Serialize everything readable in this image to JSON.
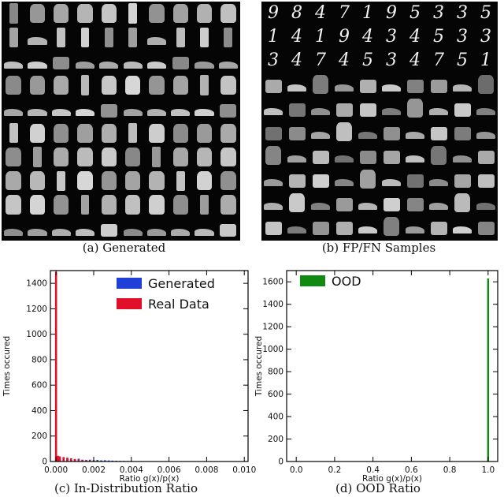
{
  "panels": {
    "a": {
      "caption": "(a) Generated"
    },
    "b": {
      "caption": "(b) FP/FN Samples",
      "digit_rows": [
        "98471953 35",
        "1419434533",
        "3474534751"
      ]
    },
    "c": {
      "caption": "(c) In-Distribution Ratio"
    },
    "d": {
      "caption": "(d) OOD Ratio"
    }
  },
  "chart_data": [
    {
      "type": "histogram",
      "xlabel": "Ratio g(x)/p(x)",
      "ylabel": "Times occured",
      "xlim": [
        -0.0003,
        0.0102
      ],
      "ylim": [
        0,
        1500
      ],
      "xticks": [
        "0.000",
        "0.002",
        "0.004",
        "0.006",
        "0.008",
        "0.010"
      ],
      "yticks": [
        "0",
        "200",
        "400",
        "600",
        "800",
        "1000",
        "1200",
        "1400"
      ],
      "legend_position": "top-right",
      "series": [
        {
          "name": "Generated",
          "color": "#1f3fd6",
          "bins": [
            [
              0.0,
              30
            ],
            [
              0.0002,
              28
            ],
            [
              0.0004,
              24
            ],
            [
              0.0006,
              26
            ],
            [
              0.0008,
              22
            ],
            [
              0.001,
              18
            ],
            [
              0.0012,
              22
            ],
            [
              0.0014,
              14
            ],
            [
              0.0016,
              12
            ],
            [
              0.0018,
              14
            ],
            [
              0.002,
              10
            ],
            [
              0.0022,
              12
            ],
            [
              0.0024,
              9
            ],
            [
              0.0026,
              10
            ],
            [
              0.0028,
              8
            ],
            [
              0.003,
              7
            ],
            [
              0.0032,
              6
            ],
            [
              0.0034,
              5
            ],
            [
              0.0036,
              5
            ],
            [
              0.0038,
              4
            ],
            [
              0.004,
              4
            ],
            [
              0.0042,
              3
            ],
            [
              0.0044,
              3
            ],
            [
              0.0046,
              2
            ],
            [
              0.0048,
              2
            ]
          ]
        },
        {
          "name": "Real Data",
          "color": "#e0102a",
          "bins": [
            [
              0.0,
              1490
            ],
            [
              0.0001,
              45
            ],
            [
              0.0002,
              40
            ],
            [
              0.0004,
              35
            ],
            [
              0.0006,
              30
            ],
            [
              0.0008,
              25
            ],
            [
              0.001,
              20
            ],
            [
              0.0012,
              15
            ],
            [
              0.0014,
              12
            ],
            [
              0.0016,
              10
            ],
            [
              0.0018,
              8
            ],
            [
              0.002,
              6
            ],
            [
              0.0022,
              4
            ],
            [
              0.0024,
              3
            ]
          ]
        }
      ]
    },
    {
      "type": "histogram",
      "xlabel": "Ratio g(x)/p(x)",
      "ylabel": "Times occured",
      "xlim": [
        -0.05,
        1.05
      ],
      "ylim": [
        0,
        1700
      ],
      "xticks": [
        "0.0",
        "0.2",
        "0.4",
        "0.6",
        "0.8",
        "1.0"
      ],
      "yticks": [
        "0",
        "200",
        "400",
        "600",
        "800",
        "1000",
        "1200",
        "1400",
        "1600"
      ],
      "legend_position": "top-left",
      "series": [
        {
          "name": "OOD",
          "color": "#108a10",
          "bins": [
            [
              1.0,
              1630
            ]
          ]
        }
      ]
    }
  ]
}
